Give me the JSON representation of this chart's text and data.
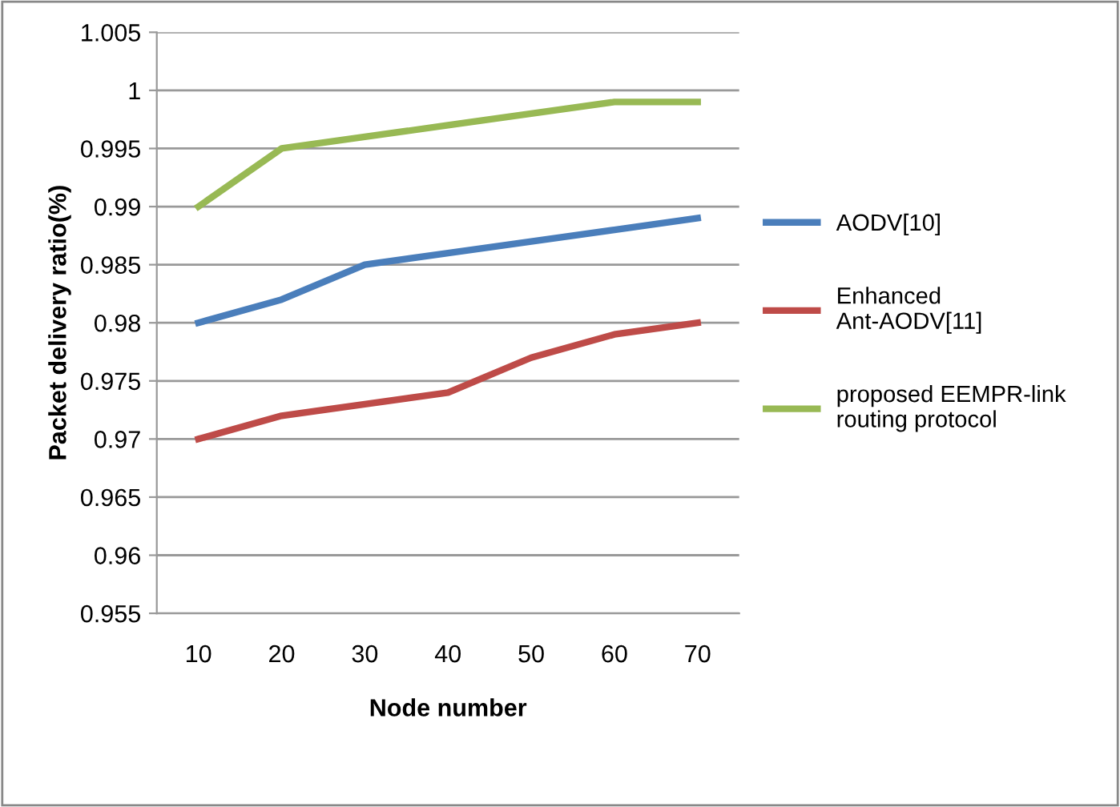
{
  "chart_data": {
    "type": "line",
    "xlabel": "Node number",
    "ylabel": "Packet delivery ratio(%)",
    "categories": [
      "10",
      "20",
      "30",
      "40",
      "50",
      "60",
      "70"
    ],
    "series": [
      {
        "name": "AODV[10]",
        "color": "#4a7ebb",
        "values": [
          0.98,
          0.982,
          0.985,
          0.986,
          0.987,
          0.988,
          0.989
        ]
      },
      {
        "name": "Enhanced Ant-AODV[11]",
        "color": "#be4b48",
        "values": [
          0.97,
          0.972,
          0.973,
          0.974,
          0.977,
          0.979,
          0.98
        ]
      },
      {
        "name": "proposed EEMPR-link routing protocol",
        "color": "#98b954",
        "values": [
          0.99,
          0.995,
          0.996,
          0.997,
          0.998,
          0.999,
          0.999
        ]
      }
    ],
    "ylim": [
      0.955,
      1.005
    ],
    "yticks": [
      0.955,
      0.96,
      0.965,
      0.97,
      0.975,
      0.98,
      0.985,
      0.99,
      0.995,
      1,
      1.005
    ],
    "grid": "y",
    "legend": "right",
    "marker": "none",
    "line_style": "solid"
  }
}
